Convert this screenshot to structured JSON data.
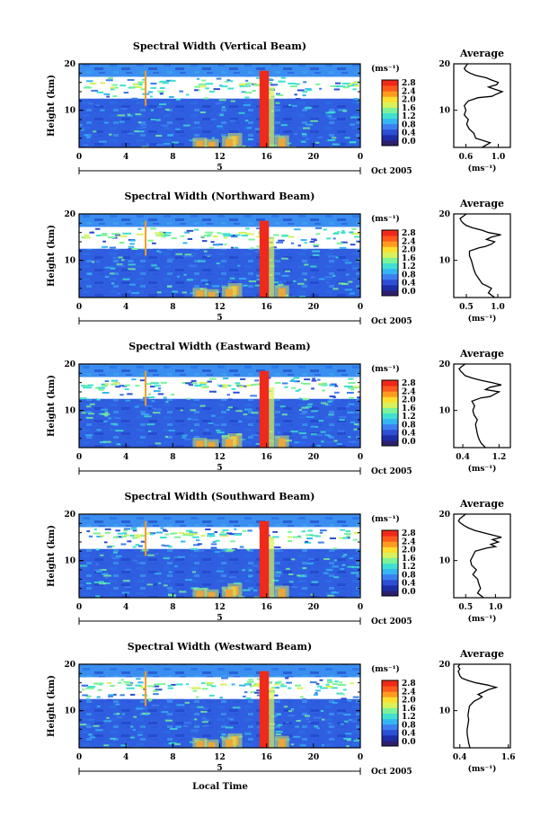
{
  "figure": {
    "xlabel": "Local Time",
    "date_label": "Oct 2005",
    "day_marker": "5",
    "average_title": "Average",
    "colorbar_unit": "(ms⁻¹)",
    "average_xunit": "(ms⁻¹)"
  },
  "colorbar": {
    "ticks": [
      "0.0",
      "0.4",
      "0.8",
      "1.2",
      "1.6",
      "2.0",
      "2.4",
      "2.8"
    ],
    "colors": [
      "#2e1f6e",
      "#1c2ea8",
      "#2d4fd6",
      "#3d7ff0",
      "#35b6f2",
      "#3fe0d0",
      "#7cf29a",
      "#d7f25c",
      "#ffdf2e",
      "#ff9a1f",
      "#ff5a1e",
      "#ef2a1a"
    ]
  },
  "chart_data": [
    {
      "type": "heatmap",
      "title": "Spectral Width (Vertical Beam)",
      "ylabel": "Height (km)",
      "xlabel": "Local Time",
      "x_ticks": [
        "0",
        "4",
        "8",
        "12",
        "16",
        "20",
        "0"
      ],
      "y_ticks": [
        "20",
        "10"
      ],
      "xlim": [
        0,
        24
      ],
      "ylim": [
        2,
        20
      ],
      "colorbar_ticks": [
        "0.0",
        "0.4",
        "0.8",
        "1.2",
        "1.6",
        "2.0",
        "2.4",
        "2.8"
      ],
      "colorbar_unit": "(ms⁻¹)",
      "average_profile": {
        "title": "Average",
        "xlabel": "(ms⁻¹)",
        "x_ticks": [
          "0.6",
          "1.0"
        ],
        "y_ticks": [
          "20",
          "10"
        ],
        "xlim": [
          0.45,
          1.15
        ],
        "ylim": [
          2,
          20
        ],
        "points": [
          [
            0.8,
            2
          ],
          [
            0.9,
            3
          ],
          [
            0.72,
            4
          ],
          [
            0.7,
            5
          ],
          [
            0.64,
            6
          ],
          [
            0.61,
            7
          ],
          [
            0.63,
            8
          ],
          [
            0.58,
            9
          ],
          [
            0.6,
            10
          ],
          [
            0.58,
            11
          ],
          [
            0.63,
            12
          ],
          [
            0.75,
            12.7
          ],
          [
            0.92,
            13
          ],
          [
            0.98,
            13.5
          ],
          [
            1.05,
            14
          ],
          [
            0.96,
            14.5
          ],
          [
            0.88,
            15
          ],
          [
            0.98,
            15.5
          ],
          [
            1.0,
            16
          ],
          [
            0.92,
            16.5
          ],
          [
            0.85,
            17
          ],
          [
            0.72,
            17.5
          ],
          [
            0.65,
            18
          ],
          [
            0.6,
            18.5
          ],
          [
            0.58,
            19
          ],
          [
            0.6,
            19.5
          ],
          [
            0.62,
            20
          ]
        ]
      }
    },
    {
      "type": "heatmap",
      "title": "Spectral Width (Northward Beam)",
      "ylabel": "Height (km)",
      "xlabel": "Local Time",
      "x_ticks": [
        "0",
        "4",
        "8",
        "12",
        "16",
        "20",
        "0"
      ],
      "y_ticks": [
        "20",
        "10"
      ],
      "xlim": [
        0,
        24
      ],
      "ylim": [
        2,
        20
      ],
      "colorbar_ticks": [
        "0.0",
        "0.4",
        "0.8",
        "1.2",
        "1.6",
        "2.0",
        "2.4",
        "2.8"
      ],
      "colorbar_unit": "(ms⁻¹)",
      "average_profile": {
        "title": "Average",
        "xlabel": "(ms⁻¹)",
        "x_ticks": [
          "0.5",
          "1.0"
        ],
        "y_ticks": [
          "20",
          "10"
        ],
        "xlim": [
          0.3,
          1.2
        ],
        "ylim": [
          2,
          20
        ],
        "points": [
          [
            0.95,
            2
          ],
          [
            0.85,
            3
          ],
          [
            0.9,
            4
          ],
          [
            0.75,
            5
          ],
          [
            0.7,
            6
          ],
          [
            0.65,
            7
          ],
          [
            0.62,
            8
          ],
          [
            0.6,
            9
          ],
          [
            0.58,
            10
          ],
          [
            0.55,
            11
          ],
          [
            0.55,
            12
          ],
          [
            0.7,
            12.7
          ],
          [
            0.8,
            13
          ],
          [
            0.9,
            13.5
          ],
          [
            0.95,
            14
          ],
          [
            0.82,
            14.5
          ],
          [
            0.9,
            15
          ],
          [
            1.05,
            15.5
          ],
          [
            0.85,
            16
          ],
          [
            0.75,
            16.5
          ],
          [
            0.6,
            17
          ],
          [
            0.5,
            17.5
          ],
          [
            0.45,
            18
          ],
          [
            0.42,
            18.5
          ],
          [
            0.4,
            19
          ],
          [
            0.45,
            19.5
          ],
          [
            0.5,
            20
          ]
        ]
      }
    },
    {
      "type": "heatmap",
      "title": "Spectral Width (Eastward Beam)",
      "ylabel": "Height (km)",
      "xlabel": "Local Time",
      "x_ticks": [
        "0",
        "4",
        "8",
        "12",
        "16",
        "20",
        "0"
      ],
      "y_ticks": [
        "20",
        "10"
      ],
      "xlim": [
        0,
        24
      ],
      "ylim": [
        2,
        20
      ],
      "colorbar_ticks": [
        "0.0",
        "0.4",
        "0.8",
        "1.2",
        "1.6",
        "2.0",
        "2.4",
        "2.8"
      ],
      "colorbar_unit": "(ms⁻¹)",
      "average_profile": {
        "title": "Average",
        "xlabel": "(ms⁻¹)",
        "x_ticks": [
          "0.4",
          "1.2"
        ],
        "y_ticks": [
          "20",
          "10"
        ],
        "xlim": [
          0.2,
          1.45
        ],
        "ylim": [
          2,
          20
        ],
        "points": [
          [
            0.9,
            2
          ],
          [
            0.8,
            3
          ],
          [
            0.75,
            4
          ],
          [
            0.72,
            5
          ],
          [
            0.7,
            6
          ],
          [
            0.68,
            7
          ],
          [
            0.72,
            8
          ],
          [
            0.65,
            9
          ],
          [
            0.62,
            10
          ],
          [
            0.66,
            11
          ],
          [
            0.6,
            12
          ],
          [
            0.8,
            12.7
          ],
          [
            1.0,
            13
          ],
          [
            1.1,
            13.5
          ],
          [
            1.2,
            14
          ],
          [
            0.9,
            14.5
          ],
          [
            1.0,
            15
          ],
          [
            1.25,
            15.5
          ],
          [
            1.05,
            16
          ],
          [
            0.8,
            16.5
          ],
          [
            0.6,
            17
          ],
          [
            0.45,
            17.5
          ],
          [
            0.4,
            18
          ],
          [
            0.35,
            18.5
          ],
          [
            0.32,
            19
          ],
          [
            0.38,
            19.5
          ],
          [
            0.45,
            20
          ]
        ]
      }
    },
    {
      "type": "heatmap",
      "title": "Spectral Width (Southward Beam)",
      "ylabel": "Height (km)",
      "xlabel": "Local Time",
      "x_ticks": [
        "0",
        "4",
        "8",
        "12",
        "16",
        "20",
        "0"
      ],
      "y_ticks": [
        "20",
        "10"
      ],
      "xlim": [
        0,
        24
      ],
      "ylim": [
        2,
        20
      ],
      "colorbar_ticks": [
        "0.0",
        "0.4",
        "0.8",
        "1.2",
        "1.6",
        "2.0",
        "2.4",
        "2.8"
      ],
      "colorbar_unit": "(ms⁻¹)",
      "average_profile": {
        "title": "Average",
        "xlabel": "(ms⁻¹)",
        "x_ticks": [
          "0.5",
          "1.0"
        ],
        "y_ticks": [
          "20",
          "10"
        ],
        "xlim": [
          0.3,
          1.25
        ],
        "ylim": [
          2,
          20
        ],
        "points": [
          [
            0.8,
            2
          ],
          [
            0.7,
            3
          ],
          [
            0.75,
            4
          ],
          [
            0.72,
            5
          ],
          [
            0.7,
            6
          ],
          [
            0.62,
            7
          ],
          [
            0.68,
            8
          ],
          [
            0.6,
            9
          ],
          [
            0.58,
            10
          ],
          [
            0.62,
            11
          ],
          [
            0.66,
            12
          ],
          [
            0.85,
            12.7
          ],
          [
            1.0,
            13
          ],
          [
            0.92,
            13.5
          ],
          [
            1.05,
            14
          ],
          [
            0.95,
            14.5
          ],
          [
            1.1,
            15
          ],
          [
            0.95,
            15.5
          ],
          [
            0.8,
            16
          ],
          [
            0.65,
            16.5
          ],
          [
            0.55,
            17
          ],
          [
            0.48,
            17.5
          ],
          [
            0.42,
            18
          ],
          [
            0.38,
            18.5
          ],
          [
            0.4,
            19
          ],
          [
            0.45,
            19.5
          ],
          [
            0.5,
            20
          ]
        ]
      }
    },
    {
      "type": "heatmap",
      "title": "Spectral Width (Westward Beam)",
      "ylabel": "Height (km)",
      "xlabel": "Local Time",
      "x_ticks": [
        "0",
        "4",
        "8",
        "12",
        "16",
        "20",
        "0"
      ],
      "y_ticks": [
        "20",
        "10"
      ],
      "xlim": [
        0,
        24
      ],
      "ylim": [
        2,
        20
      ],
      "colorbar_ticks": [
        "0.0",
        "0.4",
        "0.8",
        "1.2",
        "1.6",
        "2.0",
        "2.4",
        "2.8"
      ],
      "colorbar_unit": "(ms⁻¹)",
      "average_profile": {
        "title": "Average",
        "xlabel": "(ms⁻¹)",
        "x_ticks": [
          "0.4",
          "1.6"
        ],
        "y_ticks": [
          "20",
          "10"
        ],
        "xlim": [
          0.25,
          1.65
        ],
        "ylim": [
          2,
          20
        ],
        "points": [
          [
            0.65,
            2
          ],
          [
            0.62,
            3
          ],
          [
            0.6,
            4
          ],
          [
            0.58,
            5
          ],
          [
            0.58,
            6
          ],
          [
            0.6,
            7
          ],
          [
            0.62,
            8
          ],
          [
            0.6,
            9
          ],
          [
            0.62,
            10
          ],
          [
            0.64,
            11
          ],
          [
            0.75,
            12
          ],
          [
            0.9,
            12.7
          ],
          [
            0.95,
            13
          ],
          [
            0.85,
            13.5
          ],
          [
            0.98,
            14
          ],
          [
            1.1,
            14.5
          ],
          [
            1.3,
            15
          ],
          [
            1.1,
            15.5
          ],
          [
            0.8,
            16
          ],
          [
            0.6,
            16.5
          ],
          [
            0.45,
            17
          ],
          [
            0.4,
            17.5
          ],
          [
            0.38,
            18
          ],
          [
            0.36,
            18.5
          ],
          [
            0.4,
            19
          ],
          [
            0.36,
            19.5
          ],
          [
            0.4,
            20
          ]
        ]
      }
    }
  ]
}
